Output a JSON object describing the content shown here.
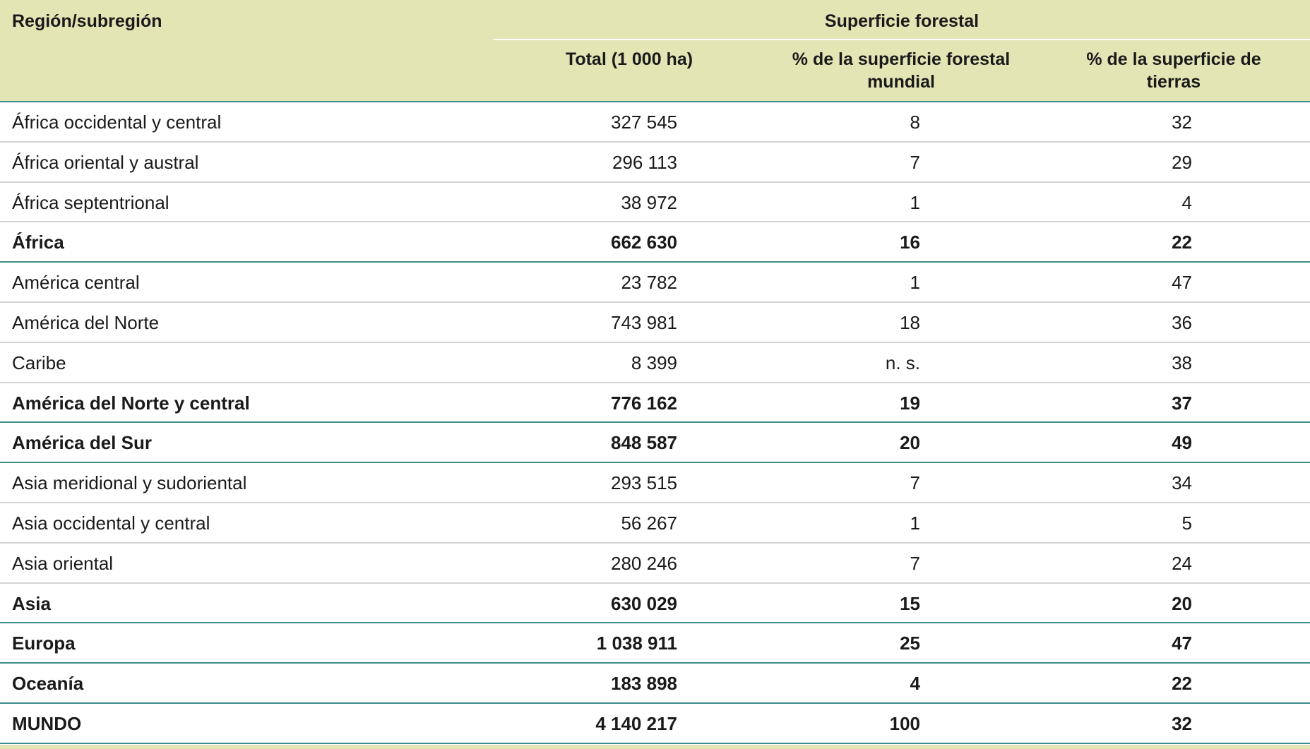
{
  "header": {
    "region": "Región/subregión",
    "group": "Superficie forestal",
    "columns": [
      "Total (1 000 ha)",
      "% de la superficie forestal mundial",
      "% de la superficie de tierras"
    ]
  },
  "table": {
    "rows": [
      {
        "cells": [
          "África occidental y central",
          "327 545",
          "8",
          "32"
        ],
        "bold": false
      },
      {
        "cells": [
          "África oriental y austral",
          "296 113",
          "7",
          "29"
        ],
        "bold": false
      },
      {
        "cells": [
          "África septentrional",
          "38 972",
          "1",
          "4"
        ],
        "bold": false
      },
      {
        "cells": [
          "África",
          "662 630",
          "16",
          "22"
        ],
        "bold": true
      },
      {
        "cells": [
          "América central",
          "23 782",
          "1",
          "47"
        ],
        "bold": false
      },
      {
        "cells": [
          "América del Norte",
          "743 981",
          "18",
          "36"
        ],
        "bold": false
      },
      {
        "cells": [
          "Caribe",
          "8 399",
          "n. s.",
          "38"
        ],
        "bold": false
      },
      {
        "cells": [
          "América del Norte y central",
          "776 162",
          "19",
          "37"
        ],
        "bold": true
      },
      {
        "cells": [
          "América del Sur",
          "848 587",
          "20",
          "49"
        ],
        "bold": true
      },
      {
        "cells": [
          "Asia meridional y sudoriental",
          "293 515",
          "7",
          "34"
        ],
        "bold": false
      },
      {
        "cells": [
          "Asia occidental y central",
          "56 267",
          "1",
          "5"
        ],
        "bold": false
      },
      {
        "cells": [
          "Asia oriental",
          "280 246",
          "7",
          "24"
        ],
        "bold": false
      },
      {
        "cells": [
          "Asia",
          "630 029",
          "15",
          "20"
        ],
        "bold": true
      },
      {
        "cells": [
          "Europa",
          "1 038 911",
          "25",
          "47"
        ],
        "bold": true
      },
      {
        "cells": [
          "Oceanía",
          "183 898",
          "4",
          "22"
        ],
        "bold": true
      },
      {
        "cells": [
          "MUNDO",
          "4 140 217",
          "100",
          "32"
        ],
        "bold": true
      }
    ]
  }
}
